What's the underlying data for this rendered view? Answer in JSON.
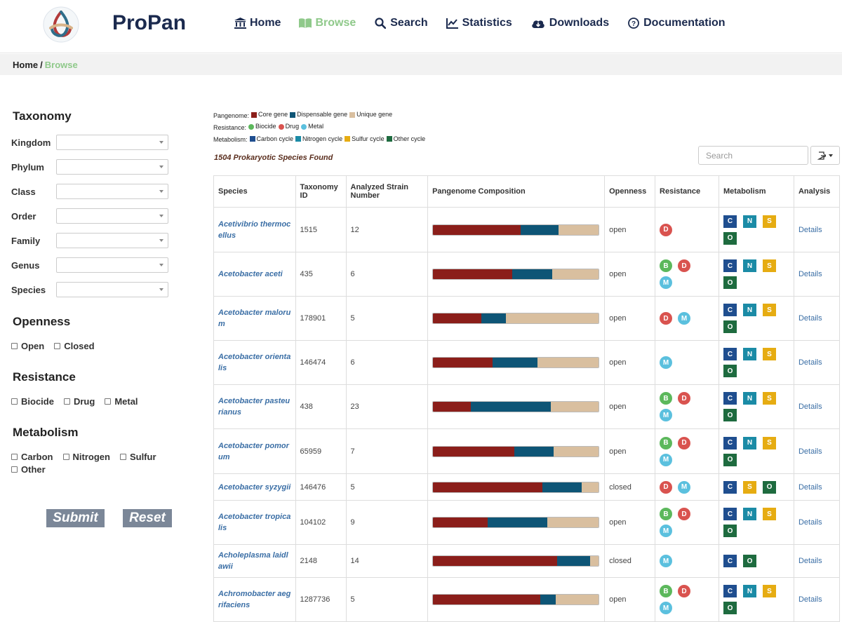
{
  "header": {
    "brand": "ProPan",
    "nav": [
      {
        "label": "Home",
        "icon": "bank-icon",
        "active": false
      },
      {
        "label": "Browse",
        "icon": "book-icon",
        "active": true
      },
      {
        "label": "Search",
        "icon": "search-icon",
        "active": false
      },
      {
        "label": "Statistics",
        "icon": "chart-icon",
        "active": false
      },
      {
        "label": "Downloads",
        "icon": "cloud-download-icon",
        "active": false
      },
      {
        "label": "Documentation",
        "icon": "question-circle-icon",
        "active": false
      }
    ]
  },
  "breadcrumb": {
    "home": "Home",
    "sep": "/",
    "current": "Browse"
  },
  "sidebar": {
    "taxonomy_title": "Taxonomy",
    "taxonomy_fields": [
      "Kingdom",
      "Phylum",
      "Class",
      "Order",
      "Family",
      "Genus",
      "Species"
    ],
    "openness_title": "Openness",
    "openness_options": [
      "Open",
      "Closed"
    ],
    "resistance_title": "Resistance",
    "resistance_options": [
      "Biocide",
      "Drug",
      "Metal"
    ],
    "metabolism_title": "Metabolism",
    "metabolism_options": [
      "Carbon",
      "Nitrogen",
      "Sulfur",
      "Other"
    ],
    "submit_label": "Submit",
    "reset_label": "Reset"
  },
  "legend": {
    "pangenome_label": "Pangenome:",
    "pangenome_items": [
      {
        "label": "Core gene",
        "color": "#8b1e1a"
      },
      {
        "label": "Dispensable gene",
        "color": "#0e5576"
      },
      {
        "label": "Unique gene",
        "color": "#d9bf9f"
      }
    ],
    "resistance_label": "Resistance:",
    "resistance_items": [
      {
        "label": "Biocide",
        "color": "#5cb85c"
      },
      {
        "label": "Drug",
        "color": "#d9534f"
      },
      {
        "label": "Metal",
        "color": "#5bc0de"
      }
    ],
    "metabolism_label": "Metabolism:",
    "metabolism_items": [
      {
        "label": "Carbon cycle",
        "color": "#1f4e8f"
      },
      {
        "label": "Nitrogen cycle",
        "color": "#1b8ba6"
      },
      {
        "label": "Sulfur cycle",
        "color": "#e6ac12"
      },
      {
        "label": "Other cycle",
        "color": "#1e6b3f"
      }
    ]
  },
  "results": {
    "found_text": "1504 Prokaryotic Species Found",
    "search_placeholder": "Search"
  },
  "table": {
    "headers": [
      "Species",
      "Taxonomy ID",
      "Analyzed Strain Number",
      "Pangenome Composition",
      "Openness",
      "Resistance",
      "Metabolism",
      "Analysis"
    ],
    "details_label": "Details",
    "rows": [
      {
        "species": "Acetivibrio thermocellus",
        "taxid": "1515",
        "strains": "12",
        "core": 0.53,
        "disp": 0.23,
        "openness": "open",
        "res": [
          "D"
        ],
        "met": [
          "C",
          "N",
          "S",
          "O"
        ]
      },
      {
        "species": "Acetobacter aceti",
        "taxid": "435",
        "strains": "6",
        "core": 0.48,
        "disp": 0.24,
        "openness": "open",
        "res": [
          "B",
          "D",
          "M"
        ],
        "met": [
          "C",
          "N",
          "S",
          "O"
        ]
      },
      {
        "species": "Acetobacter malorum",
        "taxid": "178901",
        "strains": "5",
        "core": 0.29,
        "disp": 0.15,
        "openness": "open",
        "res": [
          "D",
          "M"
        ],
        "met": [
          "C",
          "N",
          "S",
          "O"
        ]
      },
      {
        "species": "Acetobacter orientalis",
        "taxid": "146474",
        "strains": "6",
        "core": 0.36,
        "disp": 0.27,
        "openness": "open",
        "res": [
          "M"
        ],
        "met": [
          "C",
          "N",
          "S",
          "O"
        ]
      },
      {
        "species": "Acetobacter pasteurianus",
        "taxid": "438",
        "strains": "23",
        "core": 0.23,
        "disp": 0.48,
        "openness": "open",
        "res": [
          "B",
          "D",
          "M"
        ],
        "met": [
          "C",
          "N",
          "S",
          "O"
        ]
      },
      {
        "species": "Acetobacter pomorum",
        "taxid": "65959",
        "strains": "7",
        "core": 0.49,
        "disp": 0.24,
        "openness": "open",
        "res": [
          "B",
          "D",
          "M"
        ],
        "met": [
          "C",
          "N",
          "S",
          "O"
        ]
      },
      {
        "species": "Acetobacter syzygii",
        "taxid": "146476",
        "strains": "5",
        "core": 0.66,
        "disp": 0.24,
        "openness": "closed",
        "res": [
          "D",
          "M"
        ],
        "met": [
          "C",
          "S",
          "O"
        ]
      },
      {
        "species": "Acetobacter tropicalis",
        "taxid": "104102",
        "strains": "9",
        "core": 0.33,
        "disp": 0.36,
        "openness": "open",
        "res": [
          "B",
          "D",
          "M"
        ],
        "met": [
          "C",
          "N",
          "S",
          "O"
        ]
      },
      {
        "species": "Acholeplasma laidlawii",
        "taxid": "2148",
        "strains": "14",
        "core": 0.75,
        "disp": 0.2,
        "openness": "closed",
        "res": [
          "M"
        ],
        "met": [
          "C",
          "O"
        ]
      },
      {
        "species": "Achromobacter aegrifaciens",
        "taxid": "1287736",
        "strains": "5",
        "core": 0.65,
        "disp": 0.09,
        "openness": "open",
        "res": [
          "B",
          "D",
          "M"
        ],
        "met": [
          "C",
          "N",
          "S",
          "O"
        ]
      }
    ]
  }
}
